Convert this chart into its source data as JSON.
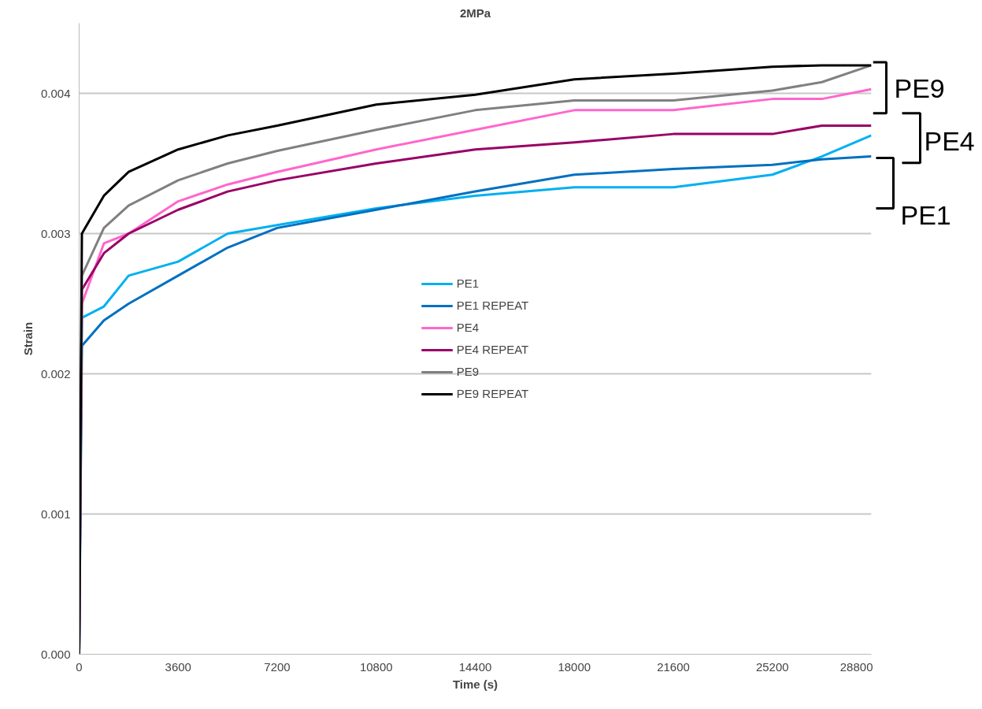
{
  "chart_data": {
    "type": "line",
    "title": "2MPa",
    "xlabel": "Time (s)",
    "ylabel": "Strain",
    "x": [
      0,
      100,
      900,
      1800,
      3600,
      5400,
      7200,
      10800,
      14400,
      18000,
      21600,
      25200,
      27000,
      28800
    ],
    "series": [
      {
        "name": "PE1",
        "color": "#00b0f0",
        "values": [
          0,
          0.0024,
          0.00248,
          0.0027,
          0.0028,
          0.003,
          0.00306,
          0.00318,
          0.00327,
          0.00333,
          0.00333,
          0.00342,
          0.00355,
          0.0037
        ]
      },
      {
        "name": "PE1 REPEAT",
        "color": "#0070c0",
        "values": [
          0,
          0.0022,
          0.00238,
          0.0025,
          0.0027,
          0.0029,
          0.00304,
          0.00317,
          0.0033,
          0.00342,
          0.00346,
          0.00349,
          0.00353,
          0.00355
        ]
      },
      {
        "name": "PE4",
        "color": "#ff66cc",
        "values": [
          0,
          0.0025,
          0.00293,
          0.003,
          0.00323,
          0.00335,
          0.00344,
          0.0036,
          0.00374,
          0.00388,
          0.00388,
          0.00396,
          0.00396,
          0.00403
        ]
      },
      {
        "name": "PE4 REPEAT",
        "color": "#990066",
        "values": [
          0,
          0.0026,
          0.00286,
          0.003,
          0.00317,
          0.0033,
          0.00338,
          0.0035,
          0.0036,
          0.00365,
          0.00371,
          0.00371,
          0.00377,
          0.00377
        ]
      },
      {
        "name": "PE9",
        "color": "#808080",
        "values": [
          0,
          0.0027,
          0.00304,
          0.0032,
          0.00338,
          0.0035,
          0.00359,
          0.00374,
          0.00388,
          0.00395,
          0.00395,
          0.00402,
          0.00408,
          0.0042
        ]
      },
      {
        "name": "PE9 REPEAT",
        "color": "#000000",
        "values": [
          0,
          0.003,
          0.00327,
          0.00344,
          0.0036,
          0.0037,
          0.00377,
          0.00392,
          0.00399,
          0.0041,
          0.00414,
          0.00419,
          0.0042,
          0.0042
        ]
      }
    ],
    "xlim": [
      0,
      28800
    ],
    "ylim": [
      0,
      0.0045
    ],
    "xticks": [
      0,
      3600,
      7200,
      10800,
      14400,
      18000,
      21600,
      25200,
      28800
    ],
    "yticks": [
      {
        "value": 0,
        "label": "0.000"
      },
      {
        "value": 0.001,
        "label": "0.001"
      },
      {
        "value": 0.002,
        "label": "0.002"
      },
      {
        "value": 0.003,
        "label": "0.003"
      },
      {
        "value": 0.004,
        "label": "0.004"
      }
    ],
    "grid": "y",
    "legend": "center",
    "marker": "none",
    "line_style": "solid",
    "annotations": [
      "PE9",
      "PE4",
      "PE1"
    ]
  }
}
